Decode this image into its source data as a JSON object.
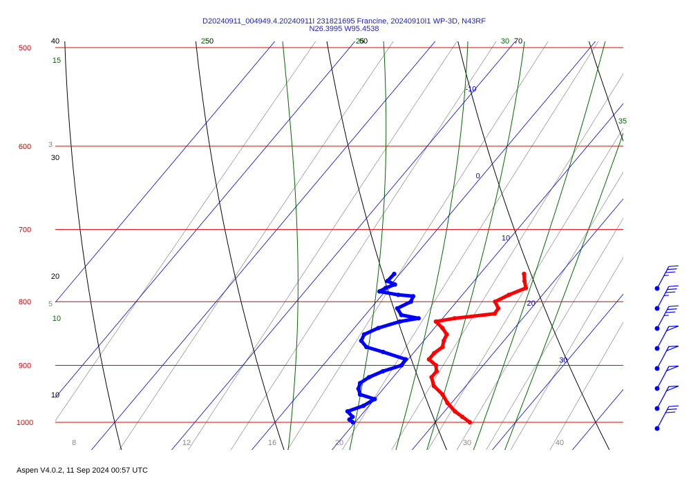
{
  "title_line1": "D20240911_004949.4.20240911I 231821695 Francine, 20240910I1 WP-3D, N43RF",
  "title_line2": "N26.3995 W95.4538",
  "footer": "Aspen V4.0.2, 11 Sep 2024  00:57 UTC",
  "colors": {
    "isobar": "#dd0000",
    "isotherm": "#0000cc",
    "mixing_ratio": "#999999",
    "dry_adiabat": "#000000",
    "moist_adiabat": "#006600",
    "temperature": "#ff0000",
    "dewpoint": "#0000ff",
    "wind_barb": "#0000ff"
  },
  "chart_data": {
    "type": "skew-t",
    "pressure_levels_hpa": [
      "500",
      "600",
      "700",
      "800",
      "900",
      "1000"
    ],
    "isotherm_labels": [
      "-10",
      "0",
      "10",
      "20",
      "30"
    ],
    "mixing_ratio_labels": [
      "3",
      "5",
      "8",
      "12",
      "16",
      "20",
      "30",
      "40"
    ],
    "dry_adiabat_labels": [
      "40",
      "30",
      "20",
      "10",
      "50",
      "60",
      "70"
    ],
    "moist_adiabat_labels": [
      "15",
      "10",
      "25",
      "30",
      "35"
    ],
    "temperature_profile": [
      {
        "p": 760,
        "t": 15.5
      },
      {
        "p": 770,
        "t": 16.3
      },
      {
        "p": 780,
        "t": 17.2
      },
      {
        "p": 790,
        "t": 15.8
      },
      {
        "p": 800,
        "t": 14.8
      },
      {
        "p": 810,
        "t": 15.9
      },
      {
        "p": 818,
        "t": 16.0
      },
      {
        "p": 825,
        "t": 11.5
      },
      {
        "p": 830,
        "t": 9.5
      },
      {
        "p": 840,
        "t": 11.0
      },
      {
        "p": 850,
        "t": 12.2
      },
      {
        "p": 860,
        "t": 12.5
      },
      {
        "p": 870,
        "t": 13.0
      },
      {
        "p": 880,
        "t": 12.6
      },
      {
        "p": 890,
        "t": 12.6
      },
      {
        "p": 900,
        "t": 14.1
      },
      {
        "p": 910,
        "t": 14.8
      },
      {
        "p": 920,
        "t": 14.8
      },
      {
        "p": 935,
        "t": 16.0
      },
      {
        "p": 950,
        "t": 18.0
      },
      {
        "p": 965,
        "t": 19.5
      },
      {
        "p": 980,
        "t": 21.3
      },
      {
        "p": 990,
        "t": 22.8
      },
      {
        "p": 1000,
        "t": 24.3
      }
    ],
    "dewpoint_profile": [
      {
        "p": 760,
        "td": -0.7
      },
      {
        "p": 770,
        "td": -0.8
      },
      {
        "p": 775,
        "td": 0.5
      },
      {
        "p": 780,
        "td": -0.3
      },
      {
        "p": 785,
        "td": -0.7
      },
      {
        "p": 790,
        "td": 2.0
      },
      {
        "p": 792,
        "td": 4.0
      },
      {
        "p": 800,
        "td": 4.3
      },
      {
        "p": 810,
        "td": 3.3
      },
      {
        "p": 820,
        "td": 4.5
      },
      {
        "p": 825,
        "td": 7.0
      },
      {
        "p": 830,
        "td": 5.0
      },
      {
        "p": 840,
        "td": 3.0
      },
      {
        "p": 850,
        "td": 1.9
      },
      {
        "p": 860,
        "td": 2.2
      },
      {
        "p": 870,
        "td": 3.5
      },
      {
        "p": 878,
        "td": 6.1
      },
      {
        "p": 890,
        "td": 9.7
      },
      {
        "p": 900,
        "td": 9.8
      },
      {
        "p": 910,
        "td": 8.1
      },
      {
        "p": 920,
        "td": 7.0
      },
      {
        "p": 930,
        "td": 6.5
      },
      {
        "p": 940,
        "td": 6.9
      },
      {
        "p": 950,
        "td": 7.7
      },
      {
        "p": 958,
        "td": 10.0
      },
      {
        "p": 970,
        "td": 9.3
      },
      {
        "p": 980,
        "td": 7.9
      },
      {
        "p": 990,
        "td": 9.1
      },
      {
        "p": 995,
        "td": 9.0
      },
      {
        "p": 1000,
        "td": 9.7
      }
    ],
    "wind_barbs": [
      {
        "speed_kt": 35,
        "dir_deg": 240
      },
      {
        "speed_kt": 35,
        "dir_deg": 240
      },
      {
        "speed_kt": 35,
        "dir_deg": 240
      },
      {
        "speed_kt": 50,
        "dir_deg": 225
      },
      {
        "speed_kt": 50,
        "dir_deg": 220
      },
      {
        "speed_kt": 50,
        "dir_deg": 215
      },
      {
        "speed_kt": 50,
        "dir_deg": 215
      },
      {
        "speed_kt": 30,
        "dir_deg": 230
      }
    ]
  }
}
